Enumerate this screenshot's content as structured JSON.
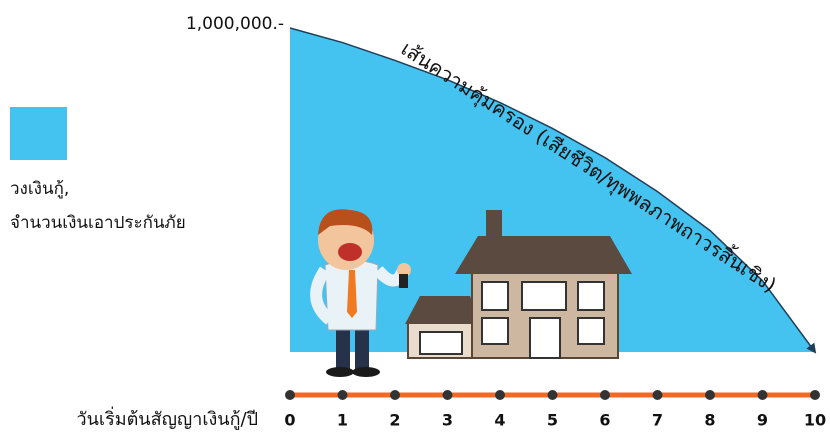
{
  "chart_data": {
    "type": "area",
    "curve_label": "เส้นความคุ้มครอง (เสียชีวิต/ทุพพลภาพถาวรสิ้นเชิง)",
    "xlabel": "วันเริ่มต้นสัญญาเงินกู้/ปี",
    "x": [
      0,
      1,
      2,
      3,
      4,
      5,
      6,
      7,
      8,
      9,
      10
    ],
    "xlim": [
      0,
      10
    ],
    "series": [
      {
        "name": "วงเงินกู้,\nจำนวนเงินเอาประกันภัย",
        "color": "#45c3f0",
        "values": [
          1000000,
          955000,
          900000,
          840000,
          770000,
          690000,
          600000,
          495000,
          375000,
          220000,
          0
        ]
      }
    ],
    "ylim": [
      0,
      1000000
    ],
    "yticks": [
      {
        "value": 1000000,
        "label": "1,000,000.-"
      }
    ],
    "axis_color": "#f06a25"
  }
}
